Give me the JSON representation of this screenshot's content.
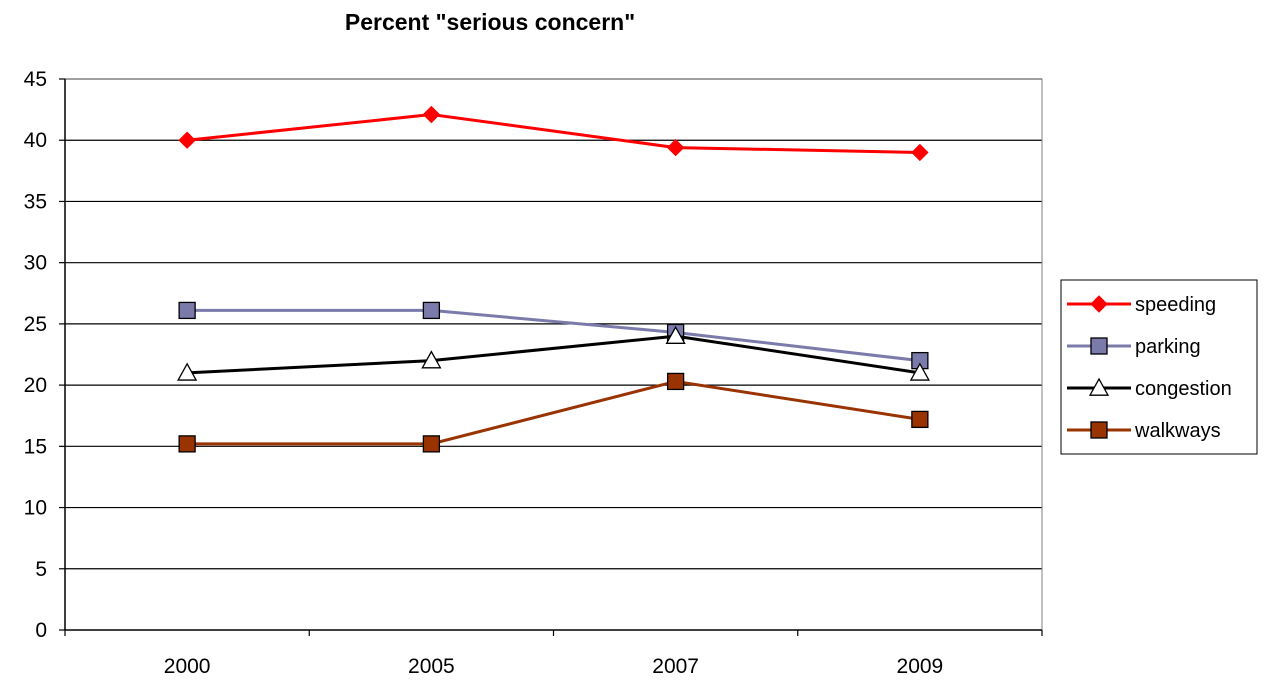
{
  "chart_data": {
    "type": "line",
    "title": "Percent \"serious concern\"",
    "xlabel": "",
    "ylabel": "",
    "categories": [
      "2000",
      "2005",
      "2007",
      "2009"
    ],
    "ylim": [
      0,
      45
    ],
    "yticks": [
      0,
      5,
      10,
      15,
      20,
      25,
      30,
      35,
      40,
      45
    ],
    "grid": true,
    "legend_position": "right",
    "series": [
      {
        "name": "speeding",
        "values": [
          40,
          42.1,
          39.4,
          39
        ],
        "color": "#ff0000",
        "marker": "diamond"
      },
      {
        "name": "parking",
        "values": [
          26.1,
          26.1,
          24.3,
          22
        ],
        "color": "#7b7bab",
        "marker": "square"
      },
      {
        "name": "congestion",
        "values": [
          21,
          22,
          24,
          21
        ],
        "color": "#000000",
        "marker": "triangle"
      },
      {
        "name": "walkways",
        "values": [
          15.2,
          15.2,
          20.3,
          17.2
        ],
        "color": "#993300",
        "marker": "square"
      }
    ]
  }
}
